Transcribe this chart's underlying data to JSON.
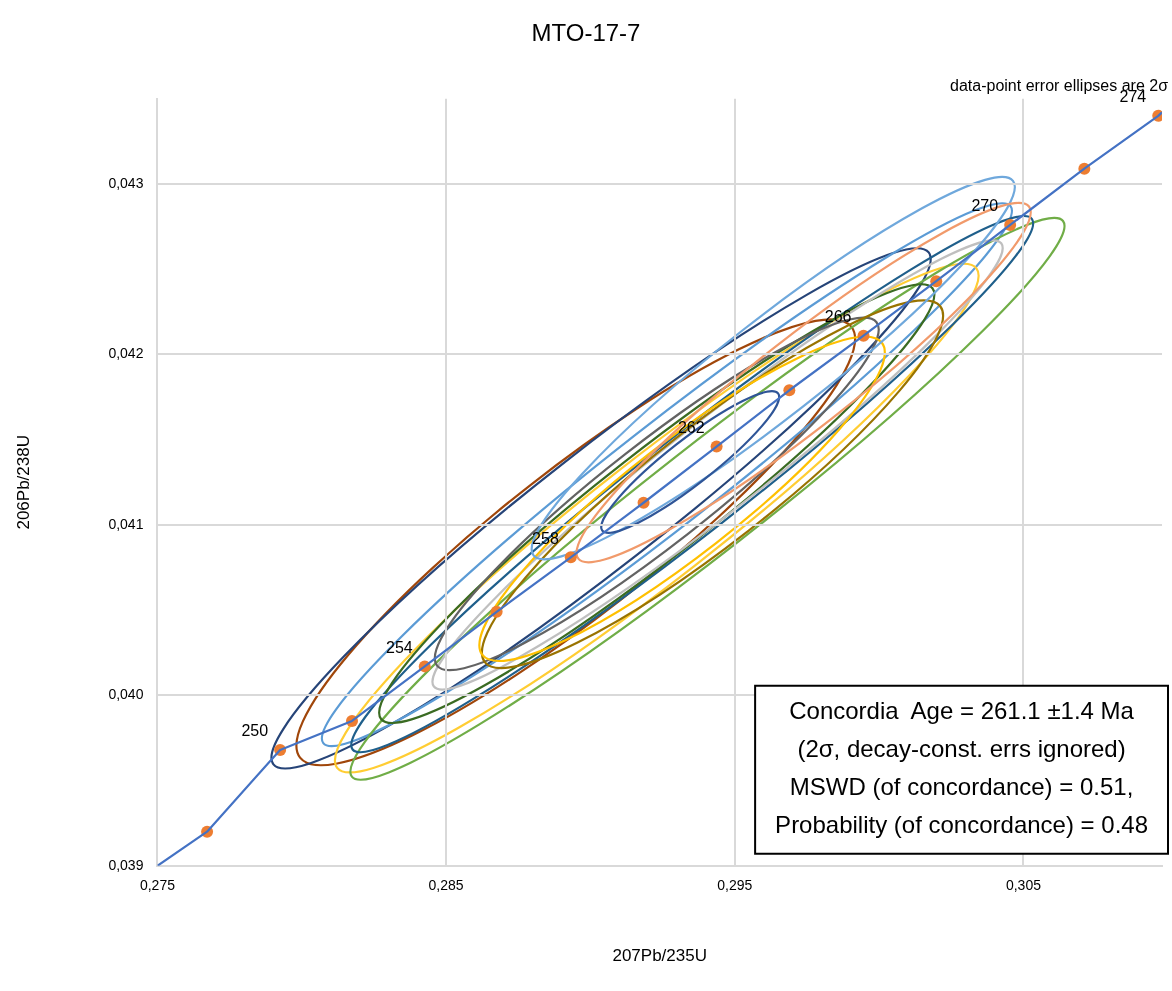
{
  "chart_data": {
    "type": "scatter",
    "title": "MTO-17-7",
    "xlabel": "207Pb/235U",
    "ylabel": "206Pb/238U",
    "xlim": [
      0.275,
      0.3098
    ],
    "ylim": [
      0.039,
      0.0435
    ],
    "xticks": [
      {
        "value": 0.275,
        "label": "0,275"
      },
      {
        "value": 0.285,
        "label": "0,285"
      },
      {
        "value": 0.295,
        "label": "0,295"
      },
      {
        "value": 0.305,
        "label": "0,305"
      }
    ],
    "yticks": [
      {
        "value": 0.039,
        "label": "0,039"
      },
      {
        "value": 0.04,
        "label": "0,040"
      },
      {
        "value": 0.041,
        "label": "0,041"
      },
      {
        "value": 0.042,
        "label": "0,042"
      },
      {
        "value": 0.043,
        "label": "0,043"
      }
    ],
    "grid": true,
    "legend": false,
    "series": [
      {
        "type": "line",
        "marker": "none",
        "color": "#4472c4",
        "x": [
          0.275,
          0.27672,
          0.27925,
          0.28174,
          0.28426,
          0.28675,
          0.28932,
          0.29184,
          0.29437,
          0.29689,
          0.29946,
          0.30198,
          0.30454,
          0.30711,
          0.30967,
          0.3098
        ],
        "values": [
          0.039,
          0.0392,
          0.03968,
          0.03985,
          0.04017,
          0.04049,
          0.04081,
          0.04113,
          0.04146,
          0.04179,
          0.04211,
          0.04243,
          0.04276,
          0.04309,
          0.0434,
          0.04342
        ]
      },
      {
        "type": "scatter",
        "marker": "circle",
        "color": "#ed7d31",
        "x": [
          0.27672,
          0.27925,
          0.28174,
          0.28426,
          0.28675,
          0.28932,
          0.29184,
          0.29437,
          0.29689,
          0.29946,
          0.30198,
          0.30454,
          0.30711,
          0.30967
        ],
        "values": [
          0.0392,
          0.03968,
          0.03985,
          0.04017,
          0.04049,
          0.04081,
          0.04113,
          0.04146,
          0.04179,
          0.04211,
          0.04243,
          0.04276,
          0.04309,
          0.0434
        ]
      }
    ],
    "annotations": [
      {
        "text": "250",
        "x": 0.27925,
        "y": 0.03968
      },
      {
        "text": "254",
        "x": 0.28426,
        "y": 0.04017
      },
      {
        "text": "258",
        "x": 0.28932,
        "y": 0.04081
      },
      {
        "text": "262",
        "x": 0.29437,
        "y": 0.04146
      },
      {
        "text": "266",
        "x": 0.29946,
        "y": 0.04211
      },
      {
        "text": "270",
        "x": 0.30454,
        "y": 0.04276
      },
      {
        "text": "274",
        "x": 0.30967,
        "y": 0.0434
      },
      "data-point error ellipses are 2σ",
      "Concordia  Age = 261.1 ±1.4 Ma",
      "(2σ, decay-const. errs ignored)",
      "MSWD (of concordance) = 0.51,",
      "Probability (of concordance) = 0.48"
    ]
  }
}
